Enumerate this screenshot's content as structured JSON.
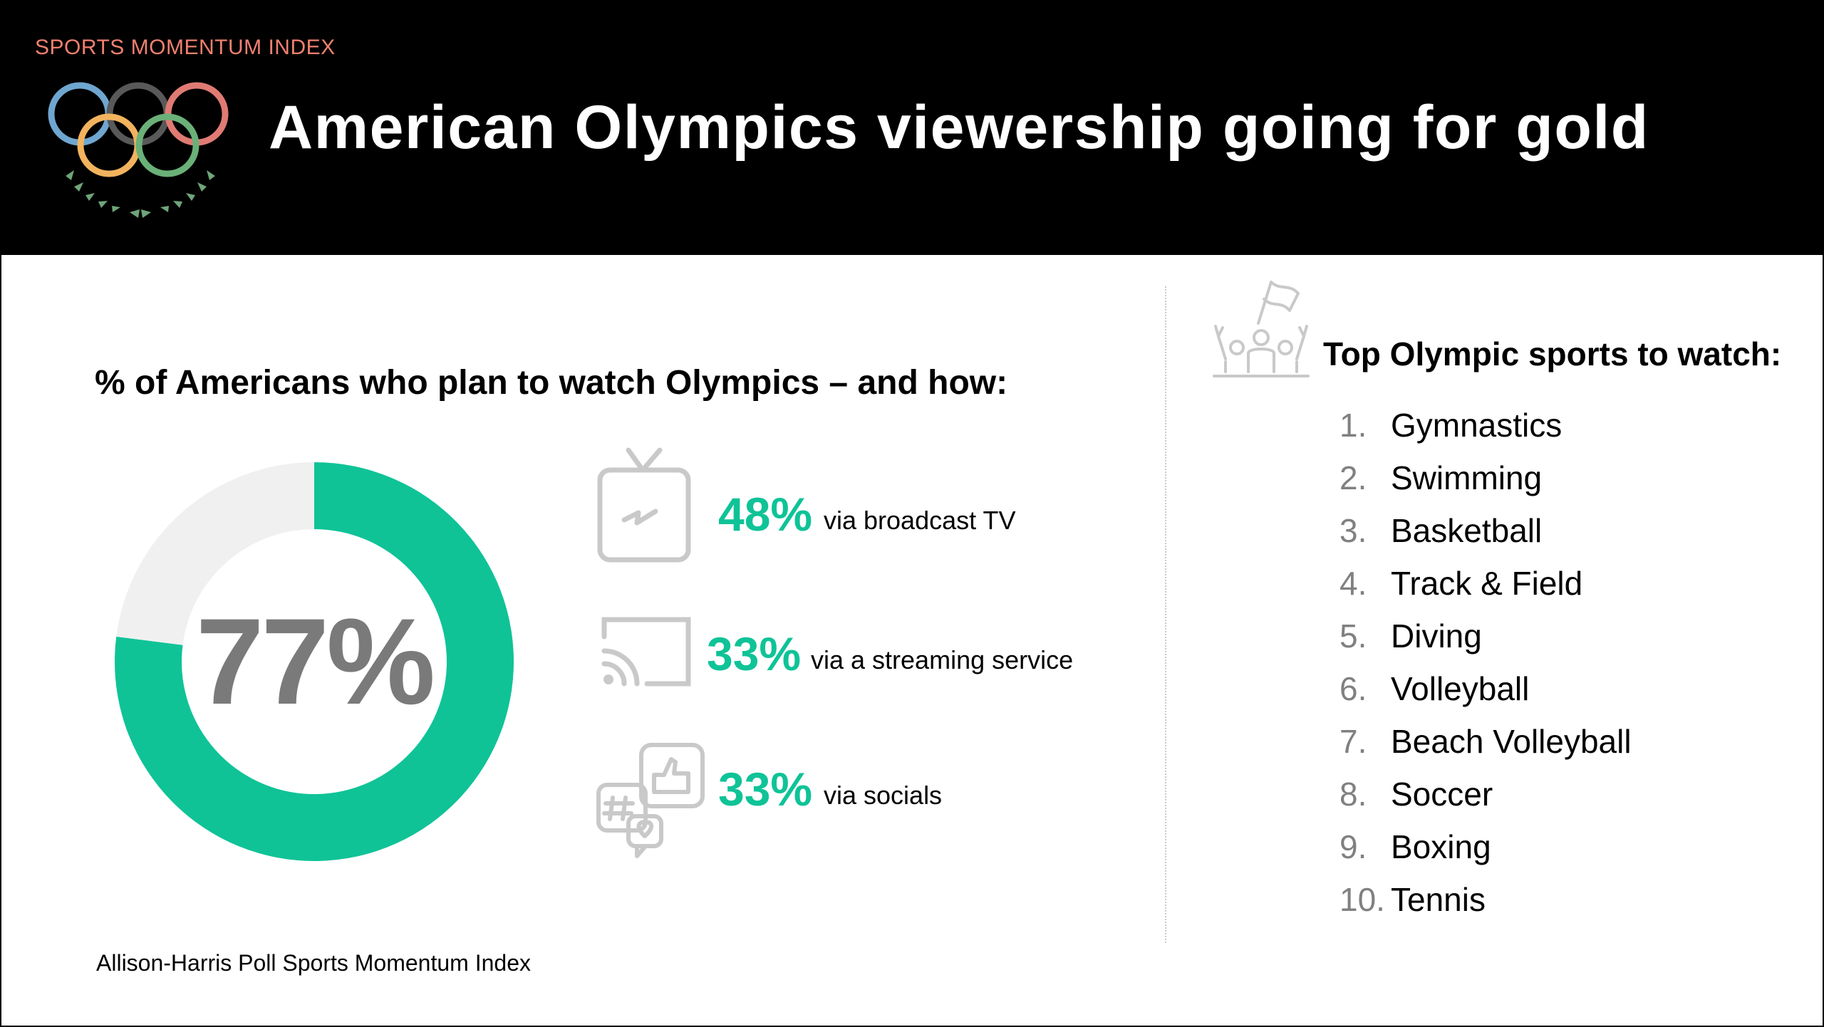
{
  "header": {
    "eyebrow": "SPORTS MOMENTUM INDEX",
    "title": "American Olympics viewership going for gold",
    "logo_icon": "olympic-rings-laurel-icon"
  },
  "left_panel": {
    "heading": "% of Americans who plan to watch Olympics – and how:",
    "channels": [
      {
        "icon": "tv-icon",
        "value": "48%",
        "label": "via broadcast TV"
      },
      {
        "icon": "cast-streaming-icon",
        "value": "33%",
        "label": "via a streaming service"
      },
      {
        "icon": "social-media-icon",
        "value": "33%",
        "label": "via socials"
      }
    ]
  },
  "right_panel": {
    "icon": "cheering-fans-icon",
    "heading": "Top Olympic sports to watch:",
    "sports": [
      {
        "rank": "1.",
        "name": "Gymnastics"
      },
      {
        "rank": "2.",
        "name": "Swimming"
      },
      {
        "rank": "3.",
        "name": "Basketball"
      },
      {
        "rank": "4.",
        "name": "Track & Field"
      },
      {
        "rank": "5.",
        "name": "Diving"
      },
      {
        "rank": "6.",
        "name": "Volleyball"
      },
      {
        "rank": "7.",
        "name": "Beach Volleyball"
      },
      {
        "rank": "8.",
        "name": "Soccer"
      },
      {
        "rank": "9.",
        "name": "Boxing"
      },
      {
        "rank": "10.",
        "name": "Tennis"
      }
    ]
  },
  "source": "Allison-Harris Poll Sports Momentum Index",
  "colors": {
    "accent": "#0fc397",
    "remainder": "#f0f0f0",
    "eyebrow": "#f08070",
    "center_text": "#7a7a7a"
  },
  "chart_data": {
    "type": "pie",
    "subtype": "donut",
    "center_label": "77%",
    "slices": [
      {
        "value": 77,
        "color": "#0fc397"
      },
      {
        "value": 23,
        "color": "#f0f0f0"
      }
    ]
  }
}
